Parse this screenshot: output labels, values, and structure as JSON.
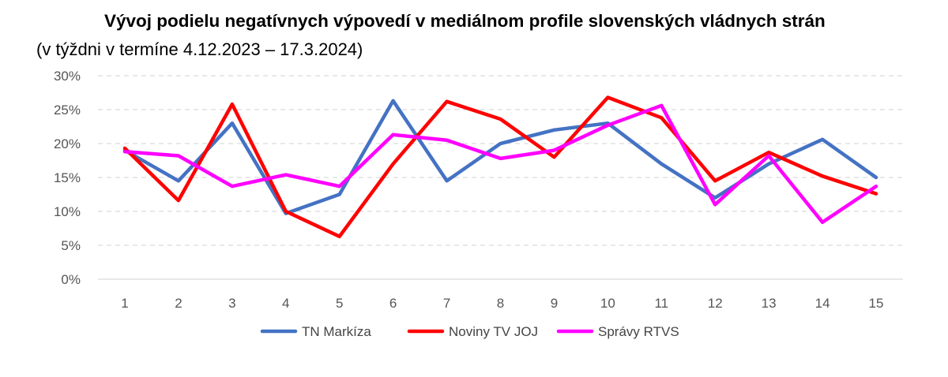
{
  "chart_data": {
    "type": "line",
    "title": "Vývoj podielu negatívnych výpovedí v mediálnom profile slovenských vládnych strán",
    "subtitle": "(v týždni v termíne 4.12.2023 – 17.3.2024)",
    "x": [
      1,
      2,
      3,
      4,
      5,
      6,
      7,
      8,
      9,
      10,
      11,
      12,
      13,
      14,
      15
    ],
    "x_tick_labels": [
      "1",
      "2",
      "3",
      "4",
      "5",
      "6",
      "7",
      "8",
      "9",
      "10",
      "11",
      "12",
      "13",
      "14",
      "15"
    ],
    "y_tick_labels": [
      "0%",
      "5%",
      "10%",
      "15%",
      "20%",
      "25%",
      "30%"
    ],
    "y_ticks": [
      0,
      5,
      10,
      15,
      20,
      25,
      30
    ],
    "ylim": [
      0,
      30
    ],
    "y_unit": "%",
    "grid": "horizontal dashed",
    "legend_position": "bottom",
    "series": [
      {
        "name": "TN Markíza",
        "color": "#4472C4",
        "values": [
          19,
          14.5,
          23,
          9.7,
          12.5,
          26.3,
          14.5,
          20,
          22,
          23,
          17,
          12,
          17,
          20.6,
          15
        ]
      },
      {
        "name": "Noviny TV JOJ",
        "color": "#FF0000",
        "values": [
          19.3,
          11.6,
          25.8,
          10,
          6.3,
          17,
          26.2,
          23.6,
          18,
          26.8,
          23.8,
          14.5,
          18.7,
          15.2,
          12.6
        ]
      },
      {
        "name": "Správy RTVS",
        "color": "#FF00FF",
        "values": [
          18.8,
          18.2,
          13.7,
          15.4,
          13.7,
          21.3,
          20.5,
          17.8,
          19,
          22.7,
          25.6,
          11,
          18.2,
          8.4,
          13.7
        ]
      }
    ]
  }
}
